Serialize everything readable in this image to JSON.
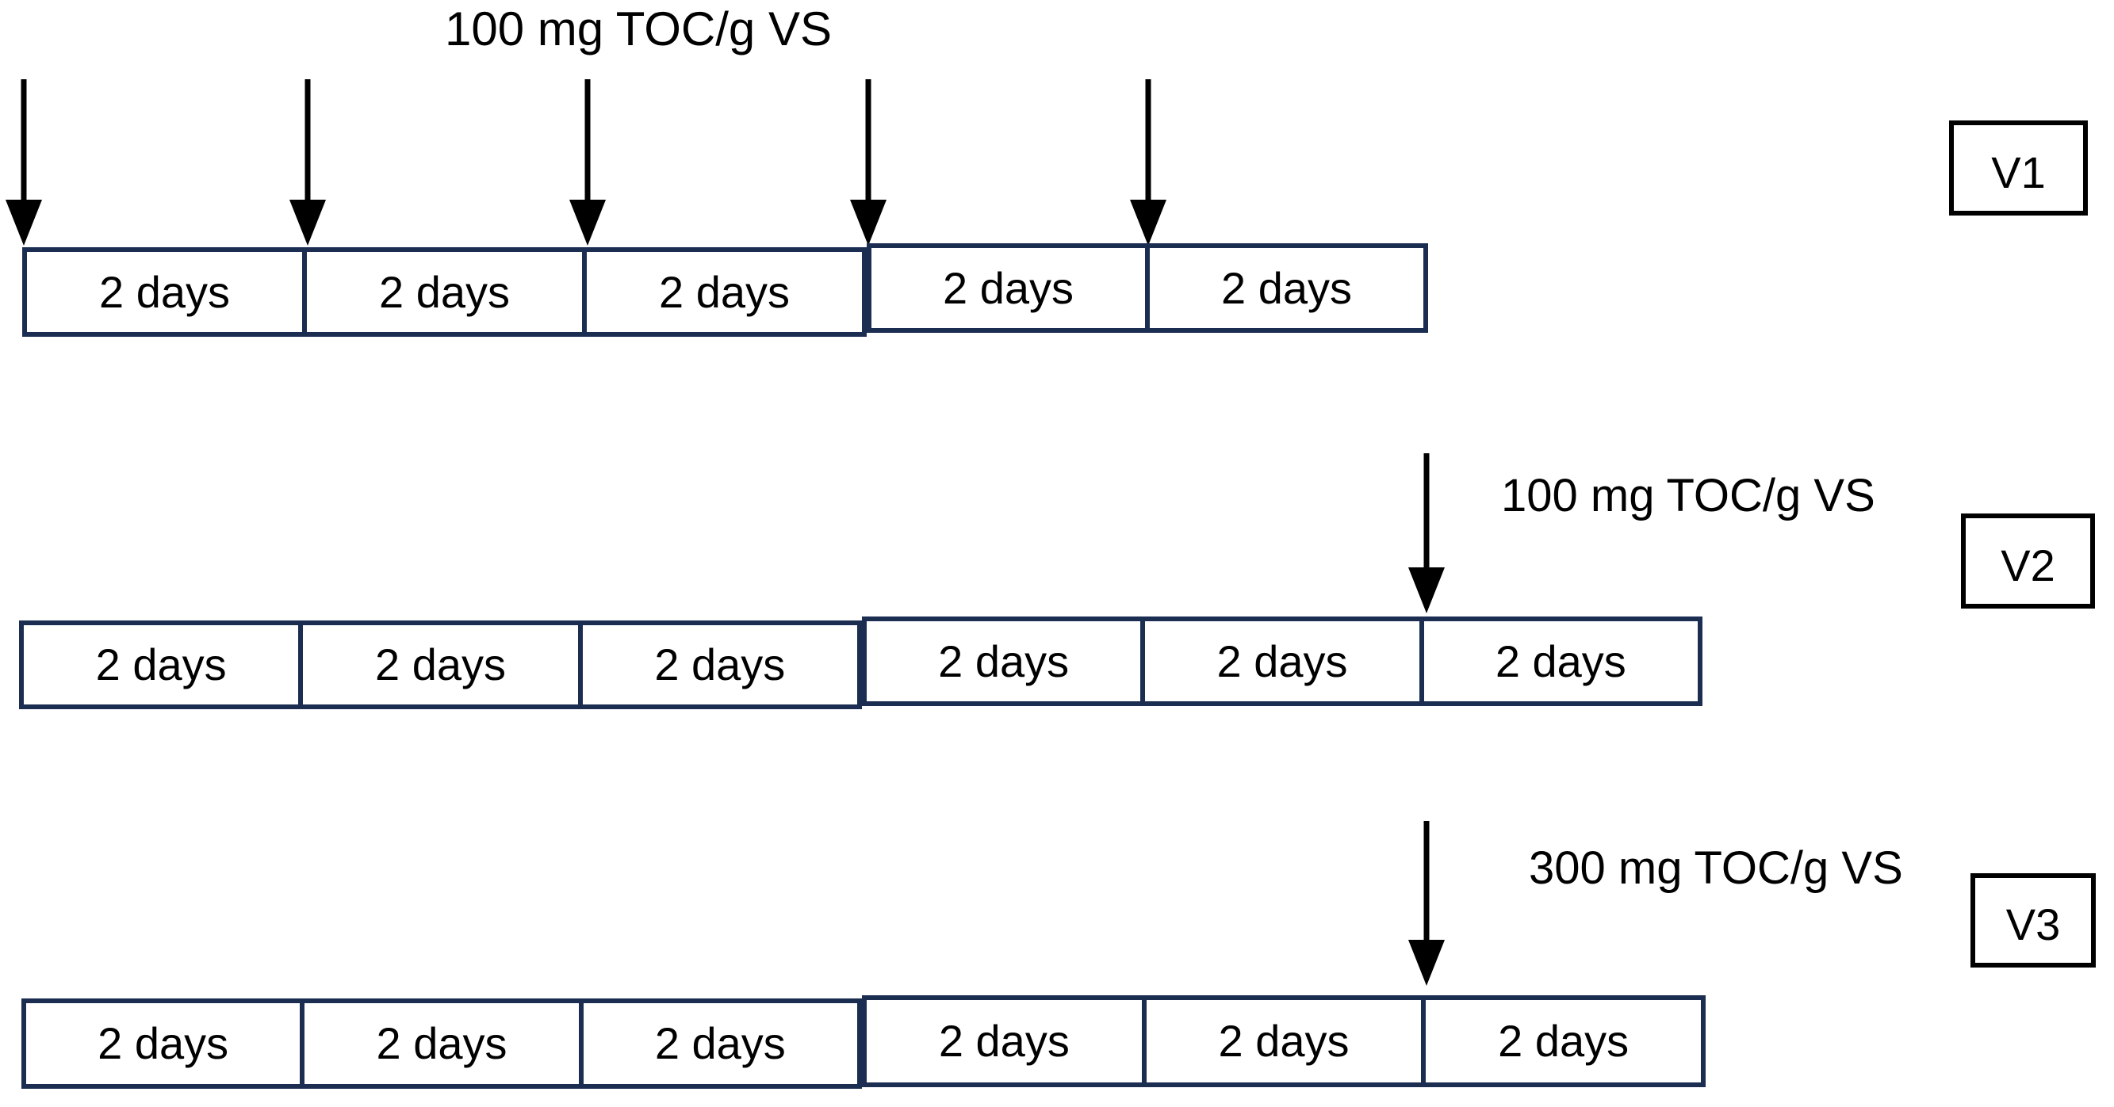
{
  "figure": {
    "background": "#ffffff",
    "timeline_border_color": "#1b2e52",
    "arrow_color": "#000000",
    "variant_box_border_color": "#000000",
    "text_color": "#000000"
  },
  "rows": [
    {
      "variant_label": "V1",
      "dose_label": "100 mg TOC/g VS",
      "dose_arrow_count": 5,
      "dose_arrow_positions": "start of each of the 5 segments",
      "segments": [
        "2 days",
        "2 days",
        "2 days",
        "2 days",
        "2 days"
      ]
    },
    {
      "variant_label": "V2",
      "dose_label": "100 mg TOC/g VS",
      "dose_arrow_count": 1,
      "dose_arrow_positions": "start of segment 6",
      "segments": [
        "2 days",
        "2 days",
        "2 days",
        "2 days",
        "2 days",
        "2 days"
      ]
    },
    {
      "variant_label": "V3",
      "dose_label": "300 mg TOC/g VS",
      "dose_arrow_count": 1,
      "dose_arrow_positions": "start of segment 6",
      "segments": [
        "2 days",
        "2 days",
        "2 days",
        "2 days",
        "2 days",
        "2 days"
      ]
    }
  ]
}
